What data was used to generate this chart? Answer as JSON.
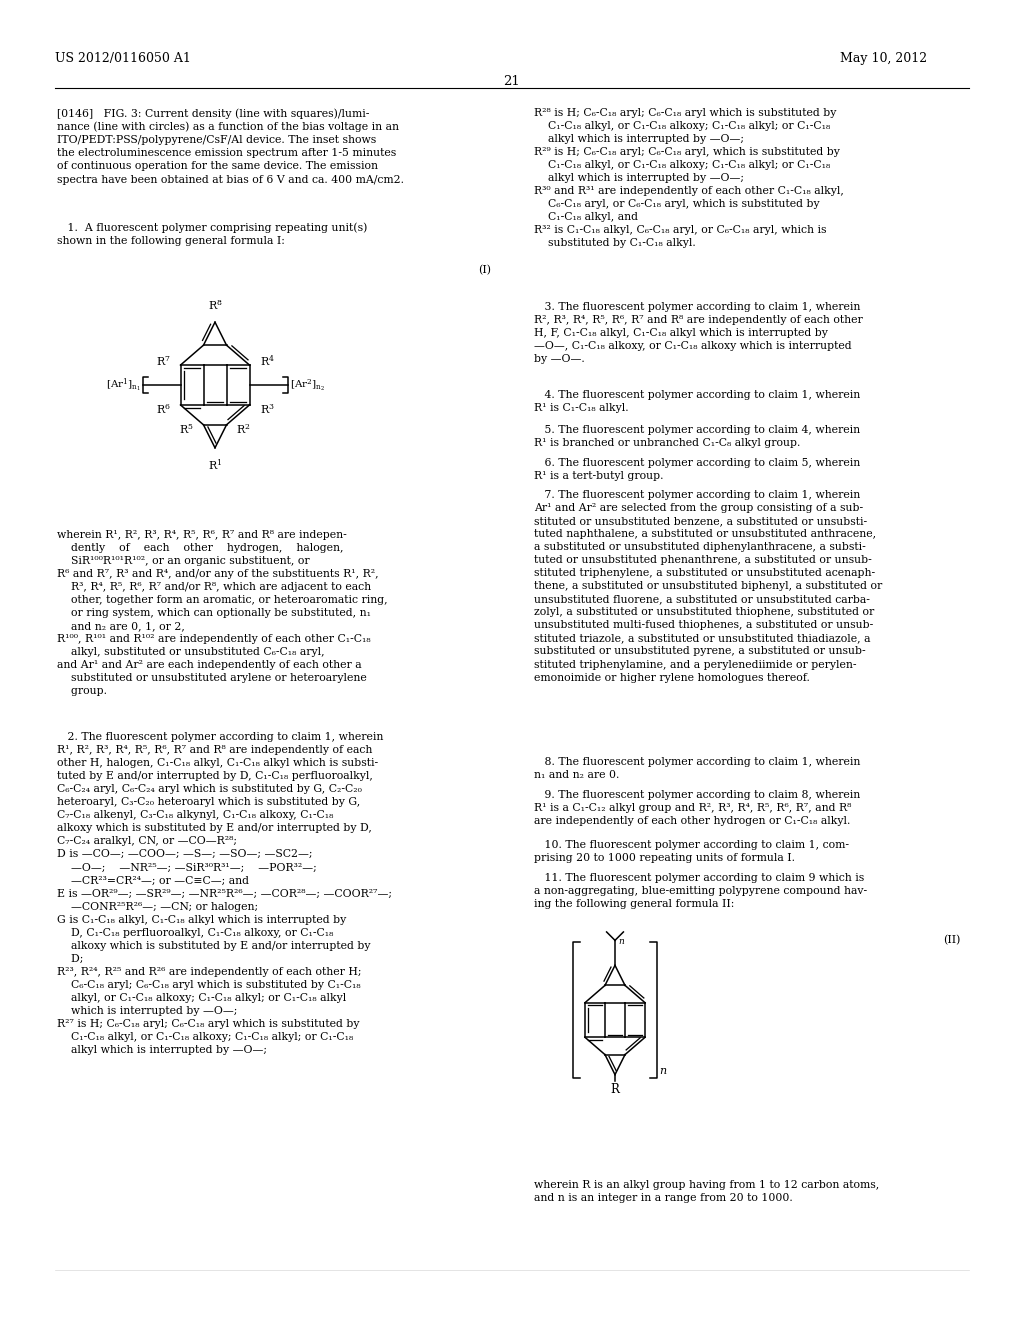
{
  "page_number": "21",
  "patent_number": "US 2012/0116050 A1",
  "patent_date": "May 10, 2012",
  "background_color": "#ffffff",
  "text_color": "#000000"
}
